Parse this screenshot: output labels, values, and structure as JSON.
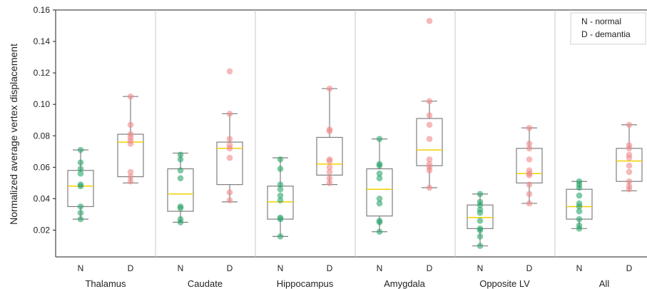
{
  "chart_data": {
    "type": "box",
    "title": "",
    "xlabel": "",
    "ylabel": "Normalized average vertex displacement",
    "ylim": [
      0.003,
      0.16
    ],
    "yticks": [
      0.02,
      0.04,
      0.06,
      0.08,
      0.1,
      0.12,
      0.14,
      0.16
    ],
    "ytick_labels": [
      "0.02",
      "0.04",
      "0.06",
      "0.08",
      "0.10",
      "0.12",
      "0.14",
      "0.16"
    ],
    "grid": false,
    "legend": {
      "placement": "top-right",
      "entries": [
        "N - normal",
        "D - demantia"
      ]
    },
    "colors": {
      "N": "#2ca56b",
      "D": "#f08a8a",
      "median": "#f2d000",
      "box": "#7f7f7f",
      "separator": "#c8c8c8"
    },
    "groups": [
      {
        "name": "Thalamus",
        "series": [
          {
            "label": "N",
            "whisker_low": 0.027,
            "q1": 0.035,
            "median": 0.048,
            "q3": 0.058,
            "whisker_high": 0.071,
            "points": [
              0.027,
              0.031,
              0.035,
              0.048,
              0.049,
              0.056,
              0.059,
              0.063,
              0.071
            ]
          },
          {
            "label": "D",
            "whisker_low": 0.05,
            "q1": 0.054,
            "median": 0.076,
            "q3": 0.081,
            "whisker_high": 0.105,
            "points": [
              0.051,
              0.054,
              0.057,
              0.075,
              0.077,
              0.079,
              0.081,
              0.087,
              0.105
            ]
          }
        ]
      },
      {
        "name": "Caudate",
        "series": [
          {
            "label": "N",
            "whisker_low": 0.025,
            "q1": 0.032,
            "median": 0.043,
            "q3": 0.059,
            "whisker_high": 0.069,
            "points": [
              0.025,
              0.027,
              0.034,
              0.035,
              0.053,
              0.058,
              0.065,
              0.068
            ]
          },
          {
            "label": "D",
            "whisker_low": 0.038,
            "q1": 0.049,
            "median": 0.072,
            "q3": 0.076,
            "whisker_high": 0.094,
            "points": [
              0.039,
              0.044,
              0.066,
              0.072,
              0.074,
              0.078,
              0.094,
              0.121
            ]
          }
        ]
      },
      {
        "name": "Hippocampus",
        "series": [
          {
            "label": "N",
            "whisker_low": 0.016,
            "q1": 0.027,
            "median": 0.038,
            "q3": 0.048,
            "whisker_high": 0.066,
            "points": [
              0.016,
              0.027,
              0.028,
              0.039,
              0.042,
              0.046,
              0.049,
              0.059,
              0.065
            ]
          },
          {
            "label": "D",
            "whisker_low": 0.049,
            "q1": 0.055,
            "median": 0.062,
            "q3": 0.079,
            "whisker_high": 0.11,
            "points": [
              0.05,
              0.053,
              0.057,
              0.06,
              0.064,
              0.065,
              0.083,
              0.084,
              0.11
            ]
          }
        ]
      },
      {
        "name": "Amygdala",
        "series": [
          {
            "label": "N",
            "whisker_low": 0.019,
            "q1": 0.029,
            "median": 0.046,
            "q3": 0.059,
            "whisker_high": 0.078,
            "points": [
              0.019,
              0.025,
              0.026,
              0.037,
              0.04,
              0.053,
              0.056,
              0.061,
              0.062,
              0.078
            ]
          },
          {
            "label": "D",
            "whisker_low": 0.047,
            "q1": 0.061,
            "median": 0.071,
            "q3": 0.091,
            "whisker_high": 0.102,
            "points": [
              0.047,
              0.058,
              0.06,
              0.062,
              0.065,
              0.078,
              0.087,
              0.093,
              0.102,
              0.153
            ]
          }
        ]
      },
      {
        "name": "Opposite LV",
        "series": [
          {
            "label": "N",
            "whisker_low": 0.01,
            "q1": 0.021,
            "median": 0.028,
            "q3": 0.036,
            "whisker_high": 0.043,
            "points": [
              0.01,
              0.016,
              0.02,
              0.021,
              0.026,
              0.031,
              0.033,
              0.036,
              0.038,
              0.043
            ]
          },
          {
            "label": "D",
            "whisker_low": 0.037,
            "q1": 0.05,
            "median": 0.056,
            "q3": 0.072,
            "whisker_high": 0.085,
            "points": [
              0.037,
              0.043,
              0.049,
              0.055,
              0.056,
              0.058,
              0.065,
              0.072,
              0.075,
              0.085
            ]
          }
        ]
      },
      {
        "name": "All",
        "series": [
          {
            "label": "N",
            "whisker_low": 0.021,
            "q1": 0.027,
            "median": 0.035,
            "q3": 0.046,
            "whisker_high": 0.051,
            "points": [
              0.021,
              0.023,
              0.027,
              0.032,
              0.035,
              0.037,
              0.042,
              0.047,
              0.049,
              0.051
            ]
          },
          {
            "label": "D",
            "whisker_low": 0.045,
            "q1": 0.051,
            "median": 0.064,
            "q3": 0.072,
            "whisker_high": 0.087,
            "points": [
              0.046,
              0.048,
              0.051,
              0.057,
              0.061,
              0.066,
              0.068,
              0.072,
              0.074,
              0.087
            ]
          }
        ]
      }
    ]
  }
}
